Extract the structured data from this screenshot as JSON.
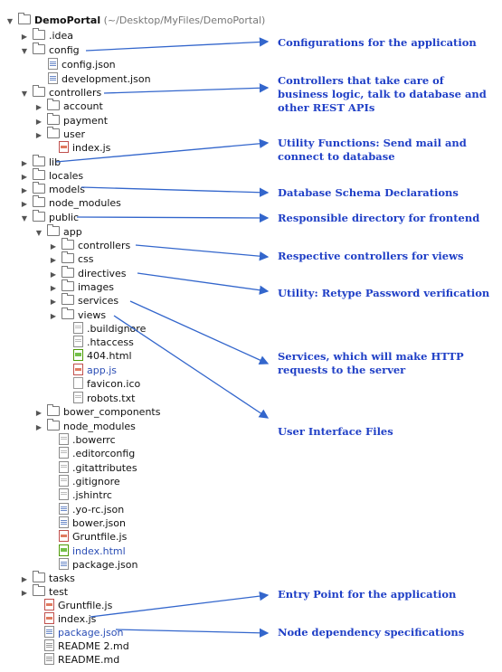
{
  "tree": {
    "root_name": "DemoPortal",
    "root_path": "(~/Desktop/MyFiles/DemoPortal)",
    "items": [
      {
        "label": "DemoPortal",
        "type": "root"
      },
      {
        "label": ".idea",
        "type": "folder",
        "expanded": false
      },
      {
        "label": "config",
        "type": "folder",
        "expanded": true
      },
      {
        "label": "config.json",
        "type": "file",
        "icon": "json-file-icon"
      },
      {
        "label": "development.json",
        "type": "file",
        "icon": "json-file-icon"
      },
      {
        "label": "controllers",
        "type": "folder",
        "expanded": true
      },
      {
        "label": "account",
        "type": "folder",
        "expanded": false
      },
      {
        "label": "payment",
        "type": "folder",
        "expanded": false
      },
      {
        "label": "user",
        "type": "folder",
        "expanded": false
      },
      {
        "label": "index.js",
        "type": "file",
        "icon": "js-file-icon"
      },
      {
        "label": "lib",
        "type": "folder",
        "expanded": false
      },
      {
        "label": "locales",
        "type": "folder",
        "expanded": false
      },
      {
        "label": "models",
        "type": "folder",
        "expanded": false
      },
      {
        "label": "node_modules",
        "type": "folder",
        "expanded": false
      },
      {
        "label": "public",
        "type": "folder",
        "expanded": true
      },
      {
        "label": "app",
        "type": "folder",
        "expanded": true
      },
      {
        "label": "controllers",
        "type": "folder",
        "expanded": false
      },
      {
        "label": "css",
        "type": "folder",
        "expanded": false
      },
      {
        "label": "directives",
        "type": "folder",
        "expanded": false
      },
      {
        "label": "images",
        "type": "folder",
        "expanded": false
      },
      {
        "label": "services",
        "type": "folder",
        "expanded": false
      },
      {
        "label": "views",
        "type": "folder",
        "expanded": false
      },
      {
        "label": ".buildignore",
        "type": "file",
        "icon": "text-file-icon"
      },
      {
        "label": ".htaccess",
        "type": "file",
        "icon": "text-file-icon"
      },
      {
        "label": "404.html",
        "type": "file",
        "icon": "html-file-icon"
      },
      {
        "label": "app.js",
        "type": "file",
        "icon": "js-file-icon",
        "highlight": true
      },
      {
        "label": "favicon.ico",
        "type": "file",
        "icon": "image-file-icon"
      },
      {
        "label": "robots.txt",
        "type": "file",
        "icon": "text-file-icon"
      },
      {
        "label": "bower_components",
        "type": "folder",
        "expanded": false
      },
      {
        "label": "node_modules",
        "type": "folder",
        "expanded": false
      },
      {
        "label": ".bowerrc",
        "type": "file",
        "icon": "text-file-icon"
      },
      {
        "label": ".editorconfig",
        "type": "file",
        "icon": "text-file-icon"
      },
      {
        "label": ".gitattributes",
        "type": "file",
        "icon": "text-file-icon"
      },
      {
        "label": ".gitignore",
        "type": "file",
        "icon": "text-file-icon"
      },
      {
        "label": ".jshintrc",
        "type": "file",
        "icon": "text-file-icon"
      },
      {
        "label": ".yo-rc.json",
        "type": "file",
        "icon": "json-file-icon"
      },
      {
        "label": "bower.json",
        "type": "file",
        "icon": "json-file-icon"
      },
      {
        "label": "Gruntfile.js",
        "type": "file",
        "icon": "js-file-icon"
      },
      {
        "label": "index.html",
        "type": "file",
        "icon": "html-file-icon",
        "highlight": true
      },
      {
        "label": "package.json",
        "type": "file",
        "icon": "json-file-icon"
      },
      {
        "label": "tasks",
        "type": "folder",
        "expanded": false
      },
      {
        "label": "test",
        "type": "folder",
        "expanded": false
      },
      {
        "label": "Gruntfile.js",
        "type": "file",
        "icon": "js-file-icon"
      },
      {
        "label": "index.js",
        "type": "file",
        "icon": "js-file-icon"
      },
      {
        "label": "package.json",
        "type": "file",
        "icon": "json-file-icon",
        "highlight": true
      },
      {
        "label": "README 2.md",
        "type": "file",
        "icon": "md-file-icon"
      },
      {
        "label": "README.md",
        "type": "file",
        "icon": "md-file-icon"
      }
    ]
  },
  "annotations": [
    {
      "text": "Configurations for the application"
    },
    {
      "text": "Controllers that take care of business logic, talk to database and other REST APIs"
    },
    {
      "text": "Utility Functions: Send mail and connect to database"
    },
    {
      "text": "Database Schema Declarations"
    },
    {
      "text": "Responsible directory for frontend"
    },
    {
      "text": "Respective controllers for views"
    },
    {
      "text": "Utility: Retype Password verification"
    },
    {
      "text": "Services, which will make HTTP requests to the server"
    },
    {
      "text": "User Interface Files"
    },
    {
      "text": "Entry Point for the application"
    },
    {
      "text": "Node dependency specifications"
    }
  ],
  "colors": {
    "annotation": "#1f3fc6",
    "link_file": "#2a4db5",
    "arrow": "#3366cc"
  }
}
